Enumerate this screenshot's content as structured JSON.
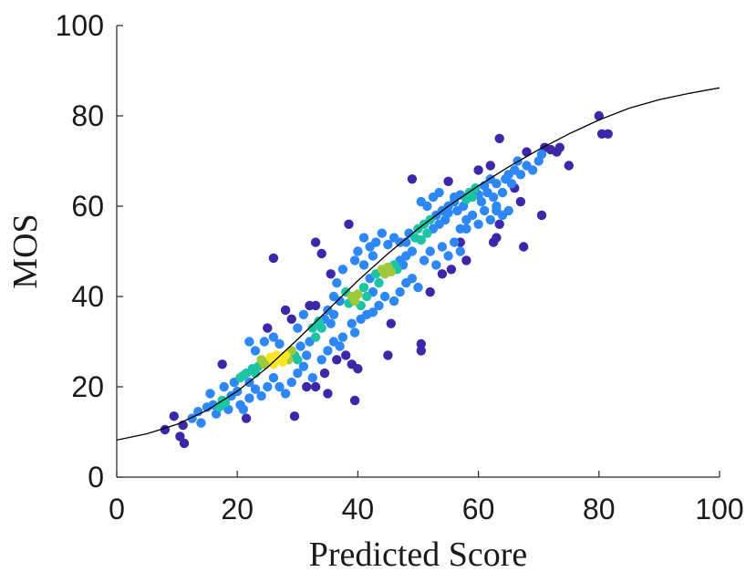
{
  "chart_data": {
    "type": "scatter",
    "title": "",
    "xlabel": "Predicted Score",
    "ylabel": "MOS",
    "xlim": [
      0,
      100
    ],
    "ylim": [
      0,
      100
    ],
    "xticks": [
      0,
      20,
      40,
      60,
      80,
      100
    ],
    "yticks": [
      0,
      20,
      40,
      60,
      80,
      100
    ],
    "grid": false,
    "color_encoding": "point density (blue = sparse, yellow = dense)",
    "colors": {
      "low_density": "#3e26a8",
      "mid_low": "#2e87f7",
      "mid": "#1cc3a5",
      "mid_high": "#9fc93a",
      "high_density": "#f9e522"
    },
    "fit_curve": {
      "type": "logistic",
      "points": [
        [
          0,
          8.2
        ],
        [
          5,
          9.6
        ],
        [
          10,
          11.7
        ],
        [
          15,
          14.8
        ],
        [
          20,
          19.0
        ],
        [
          25,
          24.3
        ],
        [
          30,
          30.5
        ],
        [
          35,
          37.0
        ],
        [
          40,
          43.5
        ],
        [
          45,
          49.5
        ],
        [
          50,
          55.0
        ],
        [
          55,
          60.0
        ],
        [
          60,
          64.5
        ],
        [
          65,
          68.7
        ],
        [
          70,
          72.5
        ],
        [
          75,
          76.0
        ],
        [
          80,
          79.1
        ],
        [
          85,
          81.7
        ],
        [
          90,
          83.6
        ],
        [
          95,
          85.0
        ],
        [
          100,
          86.2
        ]
      ]
    },
    "points": [
      {
        "x": 8,
        "y": 10.5,
        "d": 0
      },
      {
        "x": 9.5,
        "y": 13.5,
        "d": 0
      },
      {
        "x": 10.5,
        "y": 9,
        "d": 0
      },
      {
        "x": 11.2,
        "y": 7.5,
        "d": 0
      },
      {
        "x": 11,
        "y": 11.5,
        "d": 0
      },
      {
        "x": 12.5,
        "y": 13,
        "d": 1
      },
      {
        "x": 13.5,
        "y": 14.5,
        "d": 1
      },
      {
        "x": 14,
        "y": 12,
        "d": 1
      },
      {
        "x": 15,
        "y": 15.5,
        "d": 1
      },
      {
        "x": 15.5,
        "y": 18.5,
        "d": 1
      },
      {
        "x": 16,
        "y": 16,
        "d": 2
      },
      {
        "x": 16.5,
        "y": 14,
        "d": 2
      },
      {
        "x": 17,
        "y": 15.5,
        "d": 3
      },
      {
        "x": 17.5,
        "y": 17,
        "d": 3
      },
      {
        "x": 18,
        "y": 16.5,
        "d": 3
      },
      {
        "x": 18.5,
        "y": 15,
        "d": 2
      },
      {
        "x": 17.8,
        "y": 20,
        "d": 1
      },
      {
        "x": 17.5,
        "y": 25,
        "d": 0
      },
      {
        "x": 19,
        "y": 18,
        "d": 2
      },
      {
        "x": 19.5,
        "y": 21,
        "d": 2
      },
      {
        "x": 20,
        "y": 19,
        "d": 1
      },
      {
        "x": 20.5,
        "y": 22,
        "d": 3
      },
      {
        "x": 21,
        "y": 22.5,
        "d": 3
      },
      {
        "x": 21.5,
        "y": 23,
        "d": 3
      },
      {
        "x": 22,
        "y": 21,
        "d": 2
      },
      {
        "x": 22.5,
        "y": 24,
        "d": 3
      },
      {
        "x": 23,
        "y": 23,
        "d": 3
      },
      {
        "x": 23.5,
        "y": 24.5,
        "d": 3
      },
      {
        "x": 24,
        "y": 26,
        "d": 4
      },
      {
        "x": 24.5,
        "y": 25,
        "d": 4
      },
      {
        "x": 25,
        "y": 25.5,
        "d": 4
      },
      {
        "x": 25.5,
        "y": 26.5,
        "d": 5
      },
      {
        "x": 26,
        "y": 25,
        "d": 5
      },
      {
        "x": 26.5,
        "y": 27,
        "d": 5
      },
      {
        "x": 27,
        "y": 26,
        "d": 5
      },
      {
        "x": 27.5,
        "y": 25.5,
        "d": 5
      },
      {
        "x": 28,
        "y": 27,
        "d": 5
      },
      {
        "x": 28.5,
        "y": 26,
        "d": 4
      },
      {
        "x": 29,
        "y": 28,
        "d": 4
      },
      {
        "x": 29.5,
        "y": 27,
        "d": 3
      },
      {
        "x": 30,
        "y": 26,
        "d": 3
      },
      {
        "x": 30.5,
        "y": 29,
        "d": 2
      },
      {
        "x": 22,
        "y": 30,
        "d": 1
      },
      {
        "x": 23,
        "y": 28,
        "d": 1
      },
      {
        "x": 24.5,
        "y": 30,
        "d": 1
      },
      {
        "x": 25,
        "y": 33,
        "d": 0
      },
      {
        "x": 26,
        "y": 31,
        "d": 1
      },
      {
        "x": 27,
        "y": 29.5,
        "d": 2
      },
      {
        "x": 26,
        "y": 48.5,
        "d": 0
      },
      {
        "x": 21,
        "y": 15,
        "d": 1
      },
      {
        "x": 22,
        "y": 17.5,
        "d": 1
      },
      {
        "x": 23,
        "y": 19.5,
        "d": 1
      },
      {
        "x": 24,
        "y": 18,
        "d": 1
      },
      {
        "x": 25,
        "y": 20,
        "d": 1
      },
      {
        "x": 26,
        "y": 22,
        "d": 2
      },
      {
        "x": 27,
        "y": 20,
        "d": 1
      },
      {
        "x": 21.5,
        "y": 13,
        "d": 0
      },
      {
        "x": 20.5,
        "y": 16,
        "d": 1
      },
      {
        "x": 28,
        "y": 18.5,
        "d": 1
      },
      {
        "x": 29,
        "y": 21,
        "d": 1
      },
      {
        "x": 29.5,
        "y": 13.5,
        "d": 0
      },
      {
        "x": 30,
        "y": 23,
        "d": 1
      },
      {
        "x": 31,
        "y": 24.5,
        "d": 2
      },
      {
        "x": 31.5,
        "y": 27,
        "d": 2
      },
      {
        "x": 32,
        "y": 30,
        "d": 2
      },
      {
        "x": 32.5,
        "y": 33,
        "d": 3
      },
      {
        "x": 33,
        "y": 31,
        "d": 3
      },
      {
        "x": 33.5,
        "y": 34.5,
        "d": 3
      },
      {
        "x": 34,
        "y": 33,
        "d": 3
      },
      {
        "x": 34.5,
        "y": 35,
        "d": 2
      },
      {
        "x": 35,
        "y": 37,
        "d": 2
      },
      {
        "x": 35.5,
        "y": 34,
        "d": 2
      },
      {
        "x": 36,
        "y": 36,
        "d": 2
      },
      {
        "x": 31,
        "y": 36,
        "d": 1
      },
      {
        "x": 32,
        "y": 38,
        "d": 0
      },
      {
        "x": 33,
        "y": 38,
        "d": 0
      },
      {
        "x": 30,
        "y": 33,
        "d": 1
      },
      {
        "x": 29,
        "y": 35,
        "d": 0
      },
      {
        "x": 28,
        "y": 37,
        "d": 0
      },
      {
        "x": 31.5,
        "y": 20,
        "d": 0
      },
      {
        "x": 32.5,
        "y": 22,
        "d": 1
      },
      {
        "x": 33,
        "y": 20,
        "d": 0
      },
      {
        "x": 34,
        "y": 26,
        "d": 1
      },
      {
        "x": 34.5,
        "y": 23,
        "d": 0
      },
      {
        "x": 35,
        "y": 28,
        "d": 1
      },
      {
        "x": 36,
        "y": 30,
        "d": 1
      },
      {
        "x": 36.5,
        "y": 26,
        "d": 0
      },
      {
        "x": 37,
        "y": 29,
        "d": 1
      },
      {
        "x": 37.5,
        "y": 31,
        "d": 1
      },
      {
        "x": 38,
        "y": 27,
        "d": 0
      },
      {
        "x": 39,
        "y": 25,
        "d": 0
      },
      {
        "x": 39.5,
        "y": 32,
        "d": 1
      },
      {
        "x": 40,
        "y": 24,
        "d": 0
      },
      {
        "x": 33,
        "y": 52,
        "d": 0
      },
      {
        "x": 34,
        "y": 49.5,
        "d": 0
      },
      {
        "x": 35.5,
        "y": 45,
        "d": 0
      },
      {
        "x": 36,
        "y": 40,
        "d": 1
      },
      {
        "x": 36.5,
        "y": 43,
        "d": 1
      },
      {
        "x": 37,
        "y": 39,
        "d": 2
      },
      {
        "x": 37.5,
        "y": 46,
        "d": 1
      },
      {
        "x": 38,
        "y": 41,
        "d": 3
      },
      {
        "x": 38.5,
        "y": 38.5,
        "d": 3
      },
      {
        "x": 39,
        "y": 40,
        "d": 4
      },
      {
        "x": 39.5,
        "y": 39,
        "d": 4
      },
      {
        "x": 40,
        "y": 40.5,
        "d": 4
      },
      {
        "x": 40.5,
        "y": 38,
        "d": 3
      },
      {
        "x": 41,
        "y": 42,
        "d": 3
      },
      {
        "x": 41.5,
        "y": 40,
        "d": 3
      },
      {
        "x": 42,
        "y": 44,
        "d": 2
      },
      {
        "x": 42.5,
        "y": 41,
        "d": 2
      },
      {
        "x": 43,
        "y": 45,
        "d": 3
      },
      {
        "x": 43.5,
        "y": 43,
        "d": 3
      },
      {
        "x": 44,
        "y": 46,
        "d": 4
      },
      {
        "x": 44.5,
        "y": 45,
        "d": 4
      },
      {
        "x": 45,
        "y": 46.5,
        "d": 4
      },
      {
        "x": 45.5,
        "y": 45.5,
        "d": 4
      },
      {
        "x": 46,
        "y": 47,
        "d": 3
      },
      {
        "x": 46.5,
        "y": 46,
        "d": 3
      },
      {
        "x": 47,
        "y": 48,
        "d": 2
      },
      {
        "x": 47.5,
        "y": 47,
        "d": 2
      },
      {
        "x": 48,
        "y": 49,
        "d": 2
      },
      {
        "x": 38.5,
        "y": 56,
        "d": 0
      },
      {
        "x": 39.5,
        "y": 48,
        "d": 1
      },
      {
        "x": 40,
        "y": 50,
        "d": 1
      },
      {
        "x": 41,
        "y": 53,
        "d": 1
      },
      {
        "x": 42,
        "y": 51,
        "d": 1
      },
      {
        "x": 43,
        "y": 52,
        "d": 2
      },
      {
        "x": 44,
        "y": 54,
        "d": 1
      },
      {
        "x": 45,
        "y": 51.5,
        "d": 2
      },
      {
        "x": 46,
        "y": 53,
        "d": 2
      },
      {
        "x": 47,
        "y": 52,
        "d": 2
      },
      {
        "x": 42.5,
        "y": 49,
        "d": 2
      },
      {
        "x": 41,
        "y": 47,
        "d": 2
      },
      {
        "x": 39,
        "y": 34,
        "d": 1
      },
      {
        "x": 40.5,
        "y": 35,
        "d": 1
      },
      {
        "x": 41.5,
        "y": 36,
        "d": 1
      },
      {
        "x": 42.5,
        "y": 36.5,
        "d": 1
      },
      {
        "x": 43.5,
        "y": 38,
        "d": 1
      },
      {
        "x": 44.5,
        "y": 40,
        "d": 1
      },
      {
        "x": 45.5,
        "y": 34,
        "d": 0
      },
      {
        "x": 46,
        "y": 39,
        "d": 1
      },
      {
        "x": 47,
        "y": 41,
        "d": 1
      },
      {
        "x": 48,
        "y": 43,
        "d": 1
      },
      {
        "x": 49,
        "y": 44,
        "d": 1
      },
      {
        "x": 50,
        "y": 42,
        "d": 1
      },
      {
        "x": 45,
        "y": 27,
        "d": 0
      },
      {
        "x": 50.5,
        "y": 28,
        "d": 0
      },
      {
        "x": 50.5,
        "y": 29.5,
        "d": 0
      },
      {
        "x": 35,
        "y": 18.5,
        "d": 0
      },
      {
        "x": 39.5,
        "y": 17,
        "d": 0
      },
      {
        "x": 48,
        "y": 52,
        "d": 2
      },
      {
        "x": 48.5,
        "y": 54,
        "d": 2
      },
      {
        "x": 49,
        "y": 50,
        "d": 2
      },
      {
        "x": 49.5,
        "y": 53,
        "d": 3
      },
      {
        "x": 50,
        "y": 55,
        "d": 3
      },
      {
        "x": 50.5,
        "y": 52.5,
        "d": 3
      },
      {
        "x": 51,
        "y": 56,
        "d": 3
      },
      {
        "x": 51.5,
        "y": 54,
        "d": 3
      },
      {
        "x": 52,
        "y": 57,
        "d": 3
      },
      {
        "x": 52.5,
        "y": 55,
        "d": 2
      },
      {
        "x": 53,
        "y": 58,
        "d": 2
      },
      {
        "x": 53.5,
        "y": 56,
        "d": 2
      },
      {
        "x": 54,
        "y": 59,
        "d": 2
      },
      {
        "x": 54.5,
        "y": 57,
        "d": 2
      },
      {
        "x": 55,
        "y": 58.5,
        "d": 2
      },
      {
        "x": 49,
        "y": 66,
        "d": 0
      },
      {
        "x": 50.5,
        "y": 61,
        "d": 1
      },
      {
        "x": 51.5,
        "y": 60,
        "d": 1
      },
      {
        "x": 52.5,
        "y": 62,
        "d": 1
      },
      {
        "x": 53.5,
        "y": 63,
        "d": 1
      },
      {
        "x": 55,
        "y": 65.5,
        "d": 0
      },
      {
        "x": 56,
        "y": 62,
        "d": 1
      },
      {
        "x": 51,
        "y": 48,
        "d": 1
      },
      {
        "x": 52,
        "y": 50,
        "d": 2
      },
      {
        "x": 53,
        "y": 47,
        "d": 1
      },
      {
        "x": 54,
        "y": 51,
        "d": 2
      },
      {
        "x": 55,
        "y": 49,
        "d": 1
      },
      {
        "x": 56,
        "y": 52,
        "d": 1
      },
      {
        "x": 57,
        "y": 50,
        "d": 1
      },
      {
        "x": 58,
        "y": 48,
        "d": 0
      },
      {
        "x": 54,
        "y": 45,
        "d": 0
      },
      {
        "x": 55.5,
        "y": 46,
        "d": 0
      },
      {
        "x": 52,
        "y": 41,
        "d": 0
      },
      {
        "x": 55,
        "y": 60,
        "d": 2
      },
      {
        "x": 56,
        "y": 61,
        "d": 2
      },
      {
        "x": 56.5,
        "y": 59,
        "d": 2
      },
      {
        "x": 57,
        "y": 62.5,
        "d": 2
      },
      {
        "x": 57.5,
        "y": 60,
        "d": 2
      },
      {
        "x": 58,
        "y": 61.5,
        "d": 3
      },
      {
        "x": 58.5,
        "y": 63,
        "d": 3
      },
      {
        "x": 59,
        "y": 62,
        "d": 3
      },
      {
        "x": 59.5,
        "y": 64,
        "d": 3
      },
      {
        "x": 60,
        "y": 62.5,
        "d": 2
      },
      {
        "x": 60.5,
        "y": 61,
        "d": 2
      },
      {
        "x": 61,
        "y": 64.5,
        "d": 2
      },
      {
        "x": 61.5,
        "y": 63,
        "d": 2
      },
      {
        "x": 62,
        "y": 66,
        "d": 1
      },
      {
        "x": 62.5,
        "y": 62,
        "d": 1
      },
      {
        "x": 63,
        "y": 59,
        "d": 1
      },
      {
        "x": 57,
        "y": 55,
        "d": 1
      },
      {
        "x": 58,
        "y": 57,
        "d": 1
      },
      {
        "x": 59,
        "y": 58,
        "d": 1
      },
      {
        "x": 60,
        "y": 56,
        "d": 1
      },
      {
        "x": 61,
        "y": 59,
        "d": 1
      },
      {
        "x": 62,
        "y": 57,
        "d": 1
      },
      {
        "x": 63,
        "y": 60,
        "d": 1
      },
      {
        "x": 64,
        "y": 58,
        "d": 1
      },
      {
        "x": 65,
        "y": 59,
        "d": 1
      },
      {
        "x": 63.5,
        "y": 56,
        "d": 0
      },
      {
        "x": 63,
        "y": 53,
        "d": 0
      },
      {
        "x": 62.5,
        "y": 52,
        "d": 0
      },
      {
        "x": 58,
        "y": 55,
        "d": 1
      },
      {
        "x": 57,
        "y": 52,
        "d": 0
      },
      {
        "x": 60,
        "y": 68,
        "d": 0
      },
      {
        "x": 62,
        "y": 69,
        "d": 0
      },
      {
        "x": 63,
        "y": 65,
        "d": 1
      },
      {
        "x": 64,
        "y": 63,
        "d": 1
      },
      {
        "x": 64.5,
        "y": 66,
        "d": 1
      },
      {
        "x": 65,
        "y": 67,
        "d": 1
      },
      {
        "x": 65.5,
        "y": 65,
        "d": 1
      },
      {
        "x": 66,
        "y": 68,
        "d": 1
      },
      {
        "x": 66.5,
        "y": 70,
        "d": 1
      },
      {
        "x": 67,
        "y": 67,
        "d": 1
      },
      {
        "x": 68,
        "y": 69,
        "d": 1
      },
      {
        "x": 69,
        "y": 68,
        "d": 1
      },
      {
        "x": 70,
        "y": 70,
        "d": 1
      },
      {
        "x": 70.5,
        "y": 71.5,
        "d": 1
      },
      {
        "x": 71,
        "y": 73,
        "d": 0
      },
      {
        "x": 72,
        "y": 72.5,
        "d": 0
      },
      {
        "x": 73,
        "y": 72,
        "d": 0
      },
      {
        "x": 73.5,
        "y": 73,
        "d": 0
      },
      {
        "x": 75,
        "y": 69,
        "d": 0
      },
      {
        "x": 68,
        "y": 72,
        "d": 0
      },
      {
        "x": 67,
        "y": 61,
        "d": 0
      },
      {
        "x": 66,
        "y": 64,
        "d": 0
      },
      {
        "x": 67.5,
        "y": 51,
        "d": 0
      },
      {
        "x": 70.5,
        "y": 58,
        "d": 0
      },
      {
        "x": 63.5,
        "y": 75,
        "d": 0
      },
      {
        "x": 80,
        "y": 80,
        "d": 0
      },
      {
        "x": 80.5,
        "y": 76,
        "d": 0
      },
      {
        "x": 81.5,
        "y": 76,
        "d": 0
      }
    ]
  }
}
